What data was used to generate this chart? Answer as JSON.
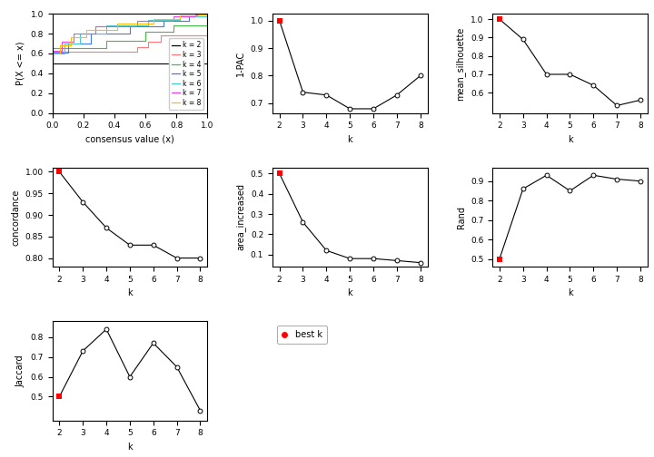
{
  "ecdf_colors": [
    "#000000",
    "#FF7777",
    "#44BB44",
    "#4477FF",
    "#44CCCC",
    "#EE44EE",
    "#FFBB00"
  ],
  "k_values": [
    2,
    3,
    4,
    5,
    6,
    7,
    8
  ],
  "pac_1minus": [
    1.0,
    0.74,
    0.73,
    0.68,
    0.68,
    0.73,
    0.8
  ],
  "mean_silhouette": [
    1.0,
    0.89,
    0.7,
    0.7,
    0.64,
    0.53,
    0.56
  ],
  "concordance": [
    1.0,
    0.93,
    0.87,
    0.83,
    0.83,
    0.8,
    0.8
  ],
  "area_increased": [
    0.5,
    0.26,
    0.12,
    0.08,
    0.08,
    0.07,
    0.06
  ],
  "rand": [
    0.5,
    0.86,
    0.93,
    0.85,
    0.93,
    0.91,
    0.9
  ],
  "jaccard": [
    0.5,
    0.73,
    0.84,
    0.6,
    0.77,
    0.65,
    0.43
  ],
  "xlabel_ecdf": "consensus value (x)",
  "ylabel_ecdf": "P(X <= x)",
  "legend_labels": [
    "k = 2",
    "k = 3",
    "k = 4",
    "k = 5",
    "k = 6",
    "k = 7",
    "k = 8"
  ],
  "best_k_label": "best k",
  "background_color": "#FFFFFF",
  "open_circle_color": "#FFFFFF",
  "open_circle_edge": "#000000",
  "filled_circle_color": "#FF0000",
  "line_color": "#000000",
  "font_size": 7,
  "tick_font_size": 6.5
}
